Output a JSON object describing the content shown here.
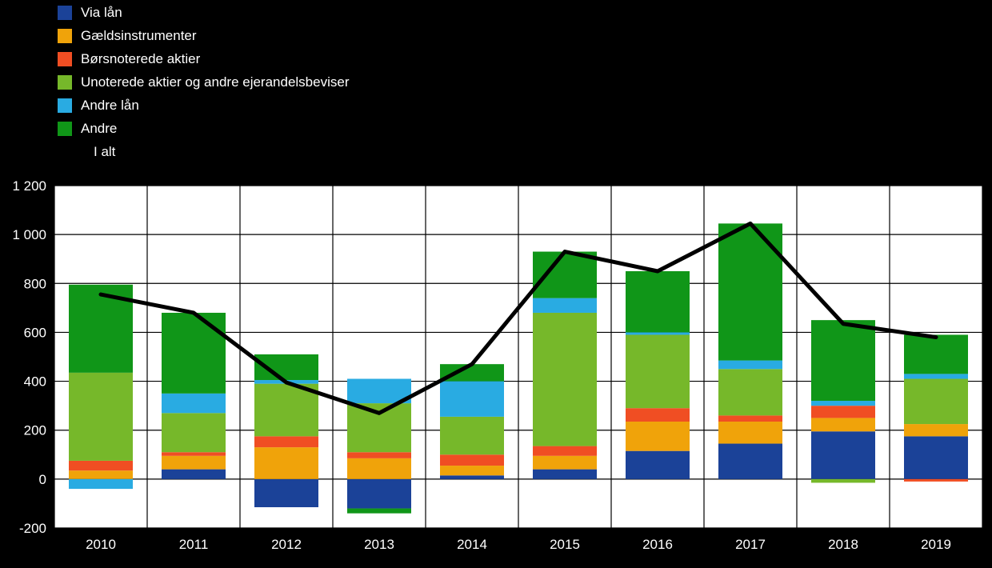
{
  "page": {
    "background": "#000000",
    "text_color": "#ffffff"
  },
  "legend": {
    "items": [
      {
        "label": "Via lån",
        "color": "#1B4298",
        "swatch": "box"
      },
      {
        "label": "Gældsinstrumenter",
        "color": "#F0A30A",
        "swatch": "box"
      },
      {
        "label": "Børsnoterede aktier",
        "color": "#F04E23",
        "swatch": "box"
      },
      {
        "label": "Unoterede aktier og andre ejerandelsbeviser",
        "color": "#76B82A",
        "swatch": "box"
      },
      {
        "label": "Andre lån",
        "color": "#29ABE2",
        "swatch": "box"
      },
      {
        "label": "Andre",
        "color": "#109618",
        "swatch": "box"
      },
      {
        "label": "I alt",
        "color": "#000000",
        "swatch": "line"
      }
    ]
  },
  "chart_data": {
    "type": "bar",
    "stacked": true,
    "grid": true,
    "plot_background": "#ffffff",
    "grid_color": "#000000",
    "categories": [
      "2010",
      "2011",
      "2012",
      "2013",
      "2014",
      "2015",
      "2016",
      "2017",
      "2018",
      "2019"
    ],
    "series": [
      {
        "name": "Via lån",
        "color": "#1B4298",
        "values": [
          0,
          40,
          -115,
          -120,
          15,
          40,
          115,
          145,
          195,
          175
        ]
      },
      {
        "name": "Gældsinstrumenter",
        "color": "#F0A30A",
        "values": [
          35,
          55,
          130,
          85,
          40,
          55,
          120,
          90,
          55,
          50
        ]
      },
      {
        "name": "Børsnoterede aktier",
        "color": "#F04E23",
        "values": [
          40,
          15,
          45,
          25,
          45,
          40,
          55,
          25,
          50,
          -10
        ]
      },
      {
        "name": "Unoterede aktier og andre ejerandelsbeviser",
        "color": "#76B82A",
        "values": [
          360,
          160,
          215,
          200,
          155,
          545,
          300,
          190,
          -15,
          185
        ]
      },
      {
        "name": "Andre lån",
        "color": "#29ABE2",
        "values": [
          -40,
          80,
          15,
          100,
          145,
          60,
          10,
          35,
          20,
          20
        ]
      },
      {
        "name": "Andre",
        "color": "#109618",
        "values": [
          360,
          330,
          105,
          -20,
          70,
          190,
          250,
          560,
          330,
          160
        ]
      }
    ],
    "line_series": {
      "name": "I alt",
      "color": "#000000",
      "values": [
        755,
        680,
        395,
        270,
        470,
        930,
        850,
        1045,
        635,
        580
      ]
    },
    "ylim": [
      -200,
      1200
    ],
    "yticks": [
      {
        "value": 1200,
        "label": "1 200"
      },
      {
        "value": 1000,
        "label": "1 000"
      },
      {
        "value": 800,
        "label": "800"
      },
      {
        "value": 600,
        "label": "600"
      },
      {
        "value": 400,
        "label": "400"
      },
      {
        "value": 200,
        "label": "200"
      },
      {
        "value": 0,
        "label": "0"
      },
      {
        "value": -200,
        "label": "-200"
      }
    ],
    "legend_position": "top-left",
    "title": "",
    "xlabel": "",
    "ylabel": ""
  }
}
